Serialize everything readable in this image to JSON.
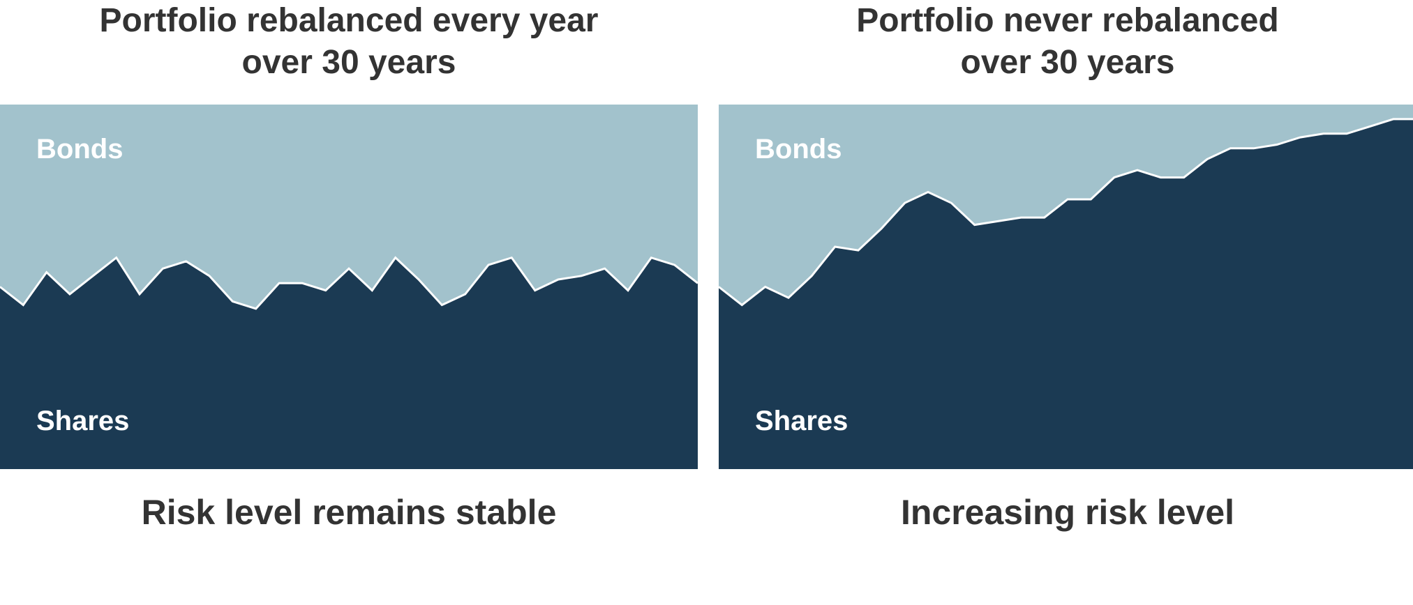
{
  "colors": {
    "bonds": "#a2c2cc",
    "shares": "#1b3a53",
    "divider": "#ffffff",
    "text": "#333333"
  },
  "chart_data": [
    {
      "type": "area",
      "title_lines": [
        "Portfolio rebalanced every year",
        "over 30 years"
      ],
      "caption": "Risk level remains stable",
      "series": [
        {
          "name": "Bonds"
        },
        {
          "name": "Shares"
        }
      ],
      "ylim": [
        0,
        100
      ],
      "x": [
        0,
        1,
        2,
        3,
        4,
        5,
        6,
        7,
        8,
        9,
        10,
        11,
        12,
        13,
        14,
        15,
        16,
        17,
        18,
        19,
        20,
        21,
        22,
        23,
        24,
        25,
        26,
        27,
        28,
        29,
        30
      ],
      "shares_share": [
        50,
        45,
        54,
        48,
        53,
        58,
        48,
        55,
        57,
        53,
        46,
        44,
        51,
        51,
        49,
        55,
        49,
        58,
        52,
        45,
        48,
        56,
        58,
        49,
        52,
        53,
        55,
        49,
        58,
        56,
        51
      ],
      "xlabel": "",
      "ylabel": ""
    },
    {
      "type": "area",
      "title_lines": [
        "Portfolio never rebalanced",
        "over 30 years"
      ],
      "caption": "Increasing risk level",
      "series": [
        {
          "name": "Bonds"
        },
        {
          "name": "Shares"
        }
      ],
      "ylim": [
        0,
        100
      ],
      "x": [
        0,
        1,
        2,
        3,
        4,
        5,
        6,
        7,
        8,
        9,
        10,
        11,
        12,
        13,
        14,
        15,
        16,
        17,
        18,
        19,
        20,
        21,
        22,
        23,
        24,
        25,
        26,
        27,
        28,
        29,
        30
      ],
      "shares_share": [
        50,
        45,
        50,
        47,
        53,
        61,
        60,
        66,
        73,
        76,
        73,
        67,
        68,
        69,
        69,
        74,
        74,
        80,
        82,
        80,
        80,
        85,
        88,
        88,
        89,
        91,
        92,
        92,
        94,
        96,
        96
      ],
      "xlabel": "",
      "ylabel": ""
    }
  ]
}
